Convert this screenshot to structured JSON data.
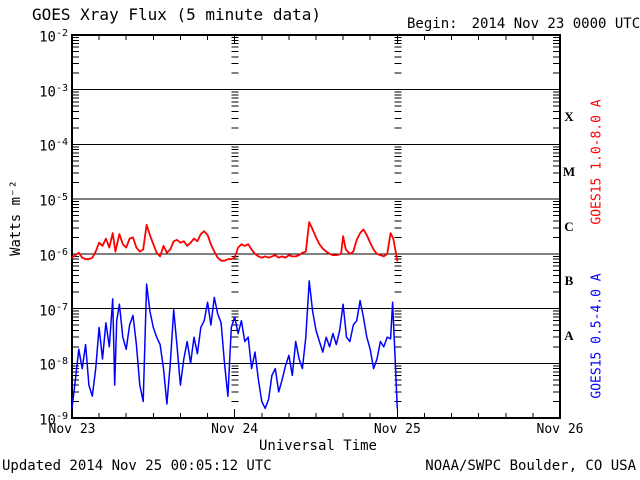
{
  "header": {
    "title": "GOES Xray Flux (5 minute data)",
    "begin_label": "Begin:",
    "begin_value": "2014 Nov 23 0000 UTC"
  },
  "footer": {
    "updated": "Updated 2014 Nov 25 00:05:12 UTC",
    "source": "NOAA/SWPC Boulder, CO USA"
  },
  "colors": {
    "long_channel": "#ff0000",
    "short_channel": "#0000ff",
    "frame": "#000000",
    "background": "#ffffff"
  },
  "chart_data": {
    "type": "line",
    "title": "GOES Xray Flux (5 minute data)",
    "xlabel": "Universal Time",
    "ylabel": "Watts m⁻²",
    "grid": {
      "horizontal_decade_lines": true,
      "legend_position": "right-margin-rotated"
    },
    "x_axis": {
      "unit": "hours since 2014 Nov 23 0000 UTC",
      "range_hours": [
        0,
        72
      ],
      "minor_tick_interval_hours": 4,
      "day_line_hours": [
        24,
        48
      ],
      "day_tick_labels": [
        {
          "hours": 0,
          "label": "Nov 23"
        },
        {
          "hours": 24,
          "label": "Nov 24"
        },
        {
          "hours": 48,
          "label": "Nov 25"
        },
        {
          "hours": 72,
          "label": "Nov 26"
        }
      ]
    },
    "y_axis": {
      "scale": "log",
      "range_watts_m2": [
        1e-09,
        0.01
      ],
      "tick_exponents": [
        -2,
        -3,
        -4,
        -5,
        -6,
        -7,
        -8,
        -9
      ]
    },
    "flare_class_bands": [
      {
        "label": "X",
        "log10_center": -3.5
      },
      {
        "label": "M",
        "log10_center": -4.5
      },
      {
        "label": "C",
        "log10_center": -5.5
      },
      {
        "label": "B",
        "log10_center": -6.5
      },
      {
        "label": "A",
        "log10_center": -7.5
      }
    ],
    "series": [
      {
        "name": "GOES15 1.0-8.0 A",
        "channel": "long",
        "color": "#ff0000",
        "points": [
          [
            0,
            8.5e-07
          ],
          [
            0.5,
            9.5e-07
          ],
          [
            1,
            1.05e-06
          ],
          [
            1.5,
            8.5e-07
          ],
          [
            2,
            8e-07
          ],
          [
            2.5,
            8e-07
          ],
          [
            3,
            8.5e-07
          ],
          [
            3.5,
            1.1e-06
          ],
          [
            4,
            1.6e-06
          ],
          [
            4.5,
            1.4e-06
          ],
          [
            5,
            1.9e-06
          ],
          [
            5.5,
            1.3e-06
          ],
          [
            6,
            2.4e-06
          ],
          [
            6.4,
            1.1e-06
          ],
          [
            7,
            2.3e-06
          ],
          [
            7.5,
            1.5e-06
          ],
          [
            8,
            1.3e-06
          ],
          [
            8.5,
            1.9e-06
          ],
          [
            9,
            2e-06
          ],
          [
            9.5,
            1.3e-06
          ],
          [
            10,
            1.1e-06
          ],
          [
            10.5,
            1.2e-06
          ],
          [
            11,
            3.4e-06
          ],
          [
            11.5,
            2.2e-06
          ],
          [
            12,
            1.5e-06
          ],
          [
            12.5,
            1.05e-06
          ],
          [
            13,
            9e-07
          ],
          [
            13.5,
            1.4e-06
          ],
          [
            14,
            1.05e-06
          ],
          [
            14.5,
            1.2e-06
          ],
          [
            15,
            1.7e-06
          ],
          [
            15.5,
            1.8e-06
          ],
          [
            16,
            1.6e-06
          ],
          [
            16.5,
            1.7e-06
          ],
          [
            17,
            1.4e-06
          ],
          [
            17.5,
            1.6e-06
          ],
          [
            18,
            1.9e-06
          ],
          [
            18.5,
            1.7e-06
          ],
          [
            19,
            2.3e-06
          ],
          [
            19.5,
            2.6e-06
          ],
          [
            20,
            2.2e-06
          ],
          [
            20.5,
            1.5e-06
          ],
          [
            21,
            1.1e-06
          ],
          [
            21.5,
            8.5e-07
          ],
          [
            22,
            7.5e-07
          ],
          [
            22.5,
            7.5e-07
          ],
          [
            23,
            8e-07
          ],
          [
            23.5,
            8e-07
          ],
          [
            24,
            8.5e-07
          ],
          [
            24.5,
            1.3e-06
          ],
          [
            25,
            1.5e-06
          ],
          [
            25.5,
            1.4e-06
          ],
          [
            26,
            1.5e-06
          ],
          [
            26.5,
            1.2e-06
          ],
          [
            27,
            1e-06
          ],
          [
            27.5,
            9e-07
          ],
          [
            28,
            8.5e-07
          ],
          [
            28.5,
            9e-07
          ],
          [
            29,
            8.5e-07
          ],
          [
            29.5,
            9e-07
          ],
          [
            30,
            9.5e-07
          ],
          [
            30.5,
            8.5e-07
          ],
          [
            31,
            9e-07
          ],
          [
            31.5,
            8.5e-07
          ],
          [
            32,
            9.5e-07
          ],
          [
            32.5,
            9e-07
          ],
          [
            33,
            9e-07
          ],
          [
            33.5,
            9.5e-07
          ],
          [
            34,
            1.05e-06
          ],
          [
            34.5,
            1.1e-06
          ],
          [
            35,
            3.8e-06
          ],
          [
            35.5,
            2.8e-06
          ],
          [
            36,
            2e-06
          ],
          [
            36.5,
            1.5e-06
          ],
          [
            37,
            1.25e-06
          ],
          [
            37.5,
            1.1e-06
          ],
          [
            38,
            1e-06
          ],
          [
            38.5,
            9.5e-07
          ],
          [
            39,
            9.5e-07
          ],
          [
            39.7,
            1e-06
          ],
          [
            40,
            2.1e-06
          ],
          [
            40.4,
            1.2e-06
          ],
          [
            41,
            1e-06
          ],
          [
            41.5,
            1.1e-06
          ],
          [
            42,
            1.8e-06
          ],
          [
            42.5,
            2.4e-06
          ],
          [
            43,
            2.8e-06
          ],
          [
            43.5,
            2.2e-06
          ],
          [
            44,
            1.6e-06
          ],
          [
            44.5,
            1.2e-06
          ],
          [
            45,
            1e-06
          ],
          [
            45.5,
            9.5e-07
          ],
          [
            46,
            9e-07
          ],
          [
            46.5,
            1e-06
          ],
          [
            47,
            2.4e-06
          ],
          [
            47.4,
            1.9e-06
          ],
          [
            48,
            7.5e-07
          ]
        ]
      },
      {
        "name": "GOES15 0.5-4.0 A",
        "channel": "short",
        "color": "#0000ff",
        "points": [
          [
            0,
            1.5e-09
          ],
          [
            0.5,
            5e-09
          ],
          [
            1,
            1.8e-08
          ],
          [
            1.5,
            8e-09
          ],
          [
            2,
            2.2e-08
          ],
          [
            2.5,
            4e-09
          ],
          [
            3,
            2.5e-09
          ],
          [
            3.5,
            8e-09
          ],
          [
            4,
            4.5e-08
          ],
          [
            4.5,
            1.2e-08
          ],
          [
            5,
            5.5e-08
          ],
          [
            5.5,
            2e-08
          ],
          [
            6,
            1.5e-07
          ],
          [
            6.3,
            4e-09
          ],
          [
            6.6,
            6e-08
          ],
          [
            7,
            1.2e-07
          ],
          [
            7.5,
            3e-08
          ],
          [
            8,
            1.8e-08
          ],
          [
            8.5,
            5e-08
          ],
          [
            9,
            7.5e-08
          ],
          [
            9.5,
            2.2e-08
          ],
          [
            10,
            4e-09
          ],
          [
            10.5,
            2e-09
          ],
          [
            11,
            2.8e-07
          ],
          [
            11.5,
            9e-08
          ],
          [
            12,
            4.5e-08
          ],
          [
            12.5,
            3e-08
          ],
          [
            13,
            2.2e-08
          ],
          [
            13.5,
            8e-09
          ],
          [
            14,
            1.8e-09
          ],
          [
            14.5,
            1e-08
          ],
          [
            15,
            9.5e-08
          ],
          [
            15.5,
            2e-08
          ],
          [
            16,
            4e-09
          ],
          [
            16.5,
            1.2e-08
          ],
          [
            17,
            2.5e-08
          ],
          [
            17.5,
            1e-08
          ],
          [
            18,
            3e-08
          ],
          [
            18.5,
            1.5e-08
          ],
          [
            19,
            4.5e-08
          ],
          [
            19.5,
            6e-08
          ],
          [
            20,
            1.3e-07
          ],
          [
            20.5,
            5e-08
          ],
          [
            21,
            1.6e-07
          ],
          [
            21.5,
            8e-08
          ],
          [
            22,
            5.5e-08
          ],
          [
            22.5,
            1e-08
          ],
          [
            23,
            2.5e-09
          ],
          [
            23.5,
            4.5e-08
          ],
          [
            24,
            7e-08
          ],
          [
            24.5,
            3.5e-08
          ],
          [
            25,
            6e-08
          ],
          [
            25.5,
            2.5e-08
          ],
          [
            26,
            3e-08
          ],
          [
            26.5,
            8e-09
          ],
          [
            27,
            1.6e-08
          ],
          [
            27.5,
            5e-09
          ],
          [
            28,
            2e-09
          ],
          [
            28.5,
            1.5e-09
          ],
          [
            29,
            2.2e-09
          ],
          [
            29.5,
            6e-09
          ],
          [
            30,
            8e-09
          ],
          [
            30.5,
            3e-09
          ],
          [
            31,
            5e-09
          ],
          [
            31.5,
            9e-09
          ],
          [
            32,
            1.4e-08
          ],
          [
            32.5,
            6e-09
          ],
          [
            33,
            2.5e-08
          ],
          [
            33.5,
            1.2e-08
          ],
          [
            34,
            8e-09
          ],
          [
            34.5,
            3e-08
          ],
          [
            35,
            3.2e-07
          ],
          [
            35.5,
            9e-08
          ],
          [
            36,
            4e-08
          ],
          [
            36.5,
            2.5e-08
          ],
          [
            37,
            1.6e-08
          ],
          [
            37.5,
            3e-08
          ],
          [
            38,
            2e-08
          ],
          [
            38.5,
            3.5e-08
          ],
          [
            39,
            2.2e-08
          ],
          [
            39.5,
            4e-08
          ],
          [
            40,
            1.2e-07
          ],
          [
            40.5,
            3e-08
          ],
          [
            41,
            2.5e-08
          ],
          [
            41.5,
            5e-08
          ],
          [
            42,
            6e-08
          ],
          [
            42.5,
            1.4e-07
          ],
          [
            43,
            7e-08
          ],
          [
            43.5,
            3e-08
          ],
          [
            44,
            1.8e-08
          ],
          [
            44.5,
            8e-09
          ],
          [
            45,
            1.2e-08
          ],
          [
            45.5,
            2.5e-08
          ],
          [
            46,
            2e-08
          ],
          [
            46.5,
            3e-08
          ],
          [
            47,
            2.8e-08
          ],
          [
            47.3,
            1.3e-07
          ],
          [
            47.6,
            2e-08
          ],
          [
            48,
            1.5e-09
          ]
        ]
      }
    ]
  }
}
